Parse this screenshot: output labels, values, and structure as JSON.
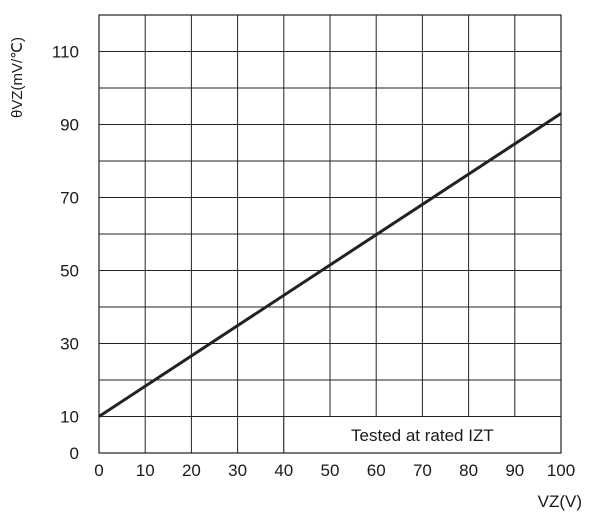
{
  "chart_data": {
    "type": "line",
    "title": "",
    "xlabel": "VZ(V)",
    "ylabel": "θVZ(mV/℃)",
    "xlim": [
      0,
      100
    ],
    "ylim": [
      0,
      120
    ],
    "x_ticks": [
      0,
      10,
      20,
      30,
      40,
      50,
      60,
      70,
      80,
      90,
      100
    ],
    "x_tick_labels": [
      "0",
      "10",
      "20",
      "30",
      "40",
      "50",
      "60",
      "70",
      "80",
      "90",
      "100"
    ],
    "y_ticks": [
      0,
      10,
      30,
      50,
      70,
      90,
      110
    ],
    "y_tick_labels": [
      "0",
      "10",
      "30",
      "50",
      "70",
      "90",
      "110"
    ],
    "y_grid_step": 10,
    "x_grid_step": 10,
    "grid": true,
    "series": [
      {
        "x": [
          0,
          100
        ],
        "y": [
          10,
          93
        ]
      }
    ],
    "annotation": "Tested at rated IZT",
    "colors": {
      "line": "#222222",
      "grid": "#222222"
    }
  }
}
